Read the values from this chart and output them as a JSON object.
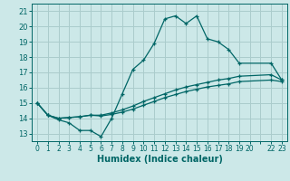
{
  "xlabel": "Humidex (Indice chaleur)",
  "bg_color": "#cce8e8",
  "grid_color": "#aacccc",
  "line_color": "#006666",
  "xlim": [
    -0.5,
    23.5
  ],
  "ylim": [
    12.5,
    21.5
  ],
  "xticks": [
    0,
    1,
    2,
    3,
    4,
    5,
    6,
    7,
    8,
    9,
    10,
    11,
    12,
    13,
    14,
    15,
    16,
    17,
    18,
    19,
    20,
    22,
    23
  ],
  "yticks": [
    13,
    14,
    15,
    16,
    17,
    18,
    19,
    20,
    21
  ],
  "line1_x": [
    0,
    1,
    2,
    3,
    4,
    5,
    6,
    7,
    8,
    9,
    10,
    11,
    12,
    13,
    14,
    15,
    16,
    17,
    18,
    19,
    22,
    23
  ],
  "line1_y": [
    15.0,
    14.2,
    13.9,
    13.7,
    13.2,
    13.2,
    12.8,
    14.0,
    15.6,
    17.2,
    17.8,
    18.9,
    20.5,
    20.7,
    20.2,
    20.7,
    19.2,
    19.0,
    18.5,
    17.6,
    17.6,
    16.5
  ],
  "line2_x": [
    0,
    1,
    2,
    3,
    4,
    5,
    6,
    7,
    8,
    9,
    10,
    11,
    12,
    13,
    14,
    15,
    16,
    17,
    18,
    19,
    22,
    23
  ],
  "line2_y": [
    15.0,
    14.2,
    14.0,
    14.05,
    14.1,
    14.2,
    14.2,
    14.35,
    14.55,
    14.8,
    15.1,
    15.35,
    15.6,
    15.85,
    16.05,
    16.2,
    16.35,
    16.5,
    16.6,
    16.75,
    16.85,
    16.5
  ],
  "line3_x": [
    0,
    1,
    2,
    3,
    4,
    5,
    6,
    7,
    8,
    9,
    10,
    11,
    12,
    13,
    14,
    15,
    16,
    17,
    18,
    19,
    22,
    23
  ],
  "line3_y": [
    15.0,
    14.2,
    14.0,
    14.05,
    14.1,
    14.2,
    14.15,
    14.25,
    14.4,
    14.6,
    14.85,
    15.1,
    15.35,
    15.55,
    15.75,
    15.9,
    16.05,
    16.15,
    16.25,
    16.4,
    16.5,
    16.4
  ]
}
